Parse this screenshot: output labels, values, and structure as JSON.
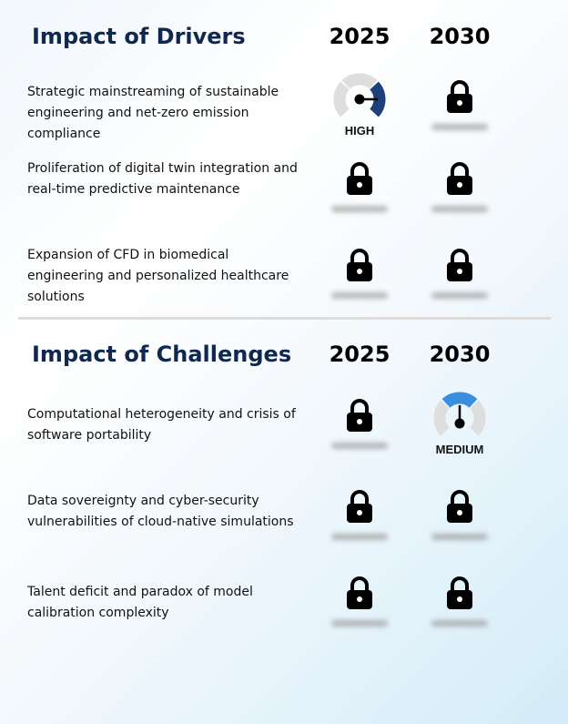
{
  "sections": [
    {
      "title": "Impact of Drivers",
      "years": [
        "2025",
        "2030"
      ],
      "rows": [
        {
          "text": "Strategic mainstreaming of sustainable engineering and net-zero emission compliance",
          "cells": [
            {
              "type": "gauge",
              "level": "HIGH",
              "color": "#1f3f7a"
            },
            {
              "type": "locked"
            }
          ]
        },
        {
          "text": "Proliferation of digital twin integration and real-time predictive maintenance",
          "cells": [
            {
              "type": "locked"
            },
            {
              "type": "locked"
            }
          ]
        },
        {
          "text": "Expansion of CFD in biomedical engineering and personalized healthcare solutions",
          "cells": [
            {
              "type": "locked"
            },
            {
              "type": "locked"
            }
          ]
        }
      ]
    },
    {
      "title": "Impact of Challenges",
      "years": [
        "2025",
        "2030"
      ],
      "rows": [
        {
          "text": "Computational heterogeneity and crisis of software portability",
          "cells": [
            {
              "type": "locked"
            },
            {
              "type": "gauge",
              "level": "MEDIUM",
              "color": "#3a8ee0"
            }
          ]
        },
        {
          "text": "Data sovereignty and cyber-security vulnerabilities of cloud-native simulations",
          "cells": [
            {
              "type": "locked"
            },
            {
              "type": "locked"
            }
          ]
        },
        {
          "text": "Talent deficit and paradox of model calibration complexity",
          "cells": [
            {
              "type": "locked"
            },
            {
              "type": "locked"
            }
          ]
        }
      ]
    }
  ]
}
